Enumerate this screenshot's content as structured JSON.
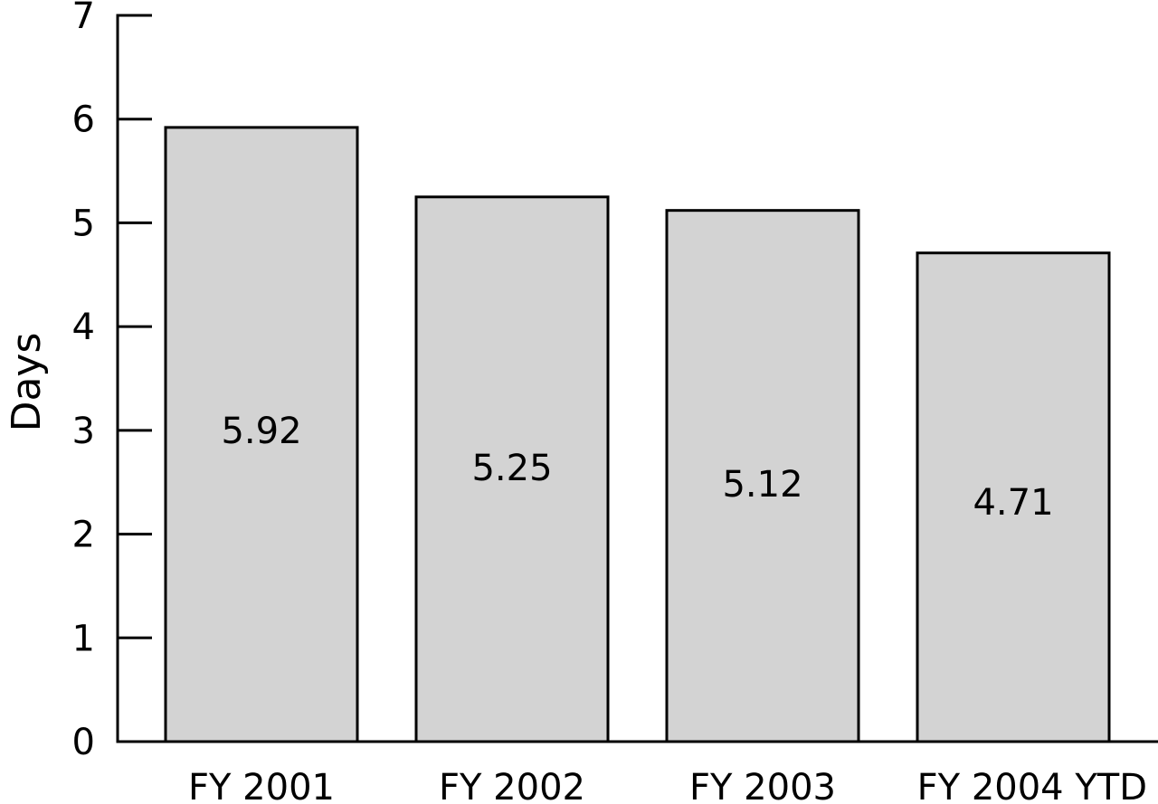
{
  "chart_data": {
    "type": "bar",
    "categories": [
      "FY 2001",
      "FY 2002",
      "FY 2003",
      "FY 2004 YTD"
    ],
    "values": [
      5.92,
      5.25,
      5.12,
      4.71
    ],
    "value_labels": [
      "5.92",
      "5.25",
      "5.12",
      "4.71"
    ],
    "title": "",
    "xlabel": "",
    "ylabel": "Days",
    "ylim": [
      0,
      7
    ],
    "yticks": [
      "0",
      "1",
      "2",
      "3",
      "4",
      "5",
      "6",
      "7"
    ],
    "grid": false,
    "legend": "none",
    "colors": {
      "bar_fill": "#d3d3d3",
      "bar_stroke": "#000000",
      "axis": "#000000"
    }
  }
}
